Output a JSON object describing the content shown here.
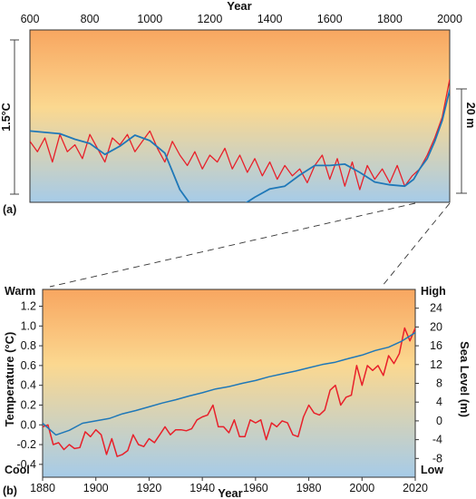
{
  "colors": {
    "temperature": "#e8202a",
    "sea_level": "#1f78b8",
    "warm_top": "#f8a660",
    "mid": "#fbd890",
    "cool_bottom": "#a6cbe8"
  },
  "chart_data": [
    {
      "type": "line",
      "panel_label": "(a)",
      "xlabel": "Year",
      "x_ticks": [
        "600",
        "800",
        "1000",
        "1200",
        "1400",
        "1600",
        "1800",
        "2000"
      ],
      "xlim": [
        600,
        2000
      ],
      "left_scale_label": "1.5°C",
      "right_scale_label": "20 m",
      "series": [
        {
          "color_role": "temperature",
          "x": [
            600,
            625,
            650,
            675,
            700,
            725,
            750,
            775,
            800,
            825,
            850,
            875,
            900,
            925,
            950,
            975,
            1000,
            1025,
            1050,
            1075,
            1100,
            1125,
            1150,
            1175,
            1200,
            1225,
            1250,
            1275,
            1300,
            1325,
            1350,
            1375,
            1400,
            1425,
            1450,
            1475,
            1500,
            1525,
            1550,
            1575,
            1600,
            1625,
            1650,
            1675,
            1700,
            1725,
            1750,
            1775,
            1800,
            1825,
            1850,
            1875,
            1900,
            1925,
            1950,
            1975,
            2000
          ],
          "y": [
            0.45,
            0.3,
            0.5,
            0.15,
            0.55,
            0.3,
            0.4,
            0.2,
            0.55,
            0.35,
            0.15,
            0.5,
            0.4,
            0.55,
            0.3,
            0.45,
            0.6,
            0.35,
            0.15,
            0.45,
            0.25,
            0.1,
            0.3,
            0.05,
            0.25,
            0.15,
            0.35,
            0.05,
            0.25,
            0.0,
            0.2,
            -0.05,
            0.15,
            -0.1,
            0.1,
            -0.05,
            0.05,
            -0.15,
            0.1,
            0.25,
            -0.1,
            0.2,
            -0.2,
            0.15,
            -0.25,
            0.1,
            -0.1,
            0.05,
            -0.15,
            0.1,
            -0.2,
            -0.05,
            0.05,
            0.25,
            0.5,
            0.8,
            1.35
          ]
        },
        {
          "color_role": "sea_level",
          "x": [
            600,
            650,
            700,
            750,
            800,
            850,
            900,
            950,
            1000,
            1050,
            1100,
            1150,
            1200,
            1250,
            1300,
            1350,
            1400,
            1450,
            1500,
            1550,
            1600,
            1650,
            1700,
            1750,
            1800,
            1850,
            1880,
            1900,
            1925,
            1950,
            1975,
            2000
          ],
          "y": [
            0.6,
            0.58,
            0.56,
            0.48,
            0.42,
            0.26,
            0.38,
            0.54,
            0.46,
            0.28,
            -0.25,
            -0.55,
            -0.5,
            -0.55,
            -0.5,
            -0.36,
            -0.24,
            -0.2,
            -0.04,
            0.1,
            0.1,
            0.12,
            0.0,
            -0.14,
            -0.18,
            -0.2,
            -0.1,
            0.05,
            0.2,
            0.45,
            0.75,
            1.2
          ]
        }
      ]
    },
    {
      "type": "line",
      "panel_label": "(b)",
      "xlabel": "Year",
      "ylabel": "Temperature (°C)",
      "y2label": "Sea Level (m)",
      "xlim": [
        1880,
        2020
      ],
      "ylim": [
        -0.53,
        1.37
      ],
      "y2lim": [
        -12,
        28
      ],
      "x_ticks": [
        "1880",
        "1900",
        "1920",
        "1940",
        "1960",
        "1980",
        "2000",
        "2020"
      ],
      "y_ticks": [
        "1.2",
        "1.0",
        "0.8",
        "0.6",
        "0.4",
        "0.2",
        "0.0",
        "-0.2",
        "-0.4"
      ],
      "y2_ticks": [
        "24",
        "20",
        "16",
        "12",
        "8",
        "4",
        "0",
        "-4",
        "-8"
      ],
      "top_left_label": "Warm",
      "bottom_left_label": "Cool",
      "top_right_label": "High",
      "bottom_right_label": "Low",
      "series": [
        {
          "color_role": "temperature",
          "axis": "left",
          "x": [
            1880,
            1882,
            1884,
            1886,
            1888,
            1890,
            1892,
            1894,
            1896,
            1898,
            1900,
            1902,
            1904,
            1906,
            1908,
            1910,
            1912,
            1914,
            1916,
            1918,
            1920,
            1922,
            1924,
            1926,
            1928,
            1930,
            1932,
            1934,
            1936,
            1938,
            1940,
            1942,
            1944,
            1946,
            1948,
            1950,
            1952,
            1954,
            1956,
            1958,
            1960,
            1962,
            1964,
            1966,
            1968,
            1970,
            1972,
            1974,
            1976,
            1978,
            1980,
            1982,
            1984,
            1986,
            1988,
            1990,
            1992,
            1994,
            1996,
            1998,
            2000,
            2002,
            2004,
            2006,
            2008,
            2010,
            2012,
            2014,
            2016,
            2018,
            2020
          ],
          "y": [
            -0.02,
            0.0,
            -0.2,
            -0.18,
            -0.25,
            -0.2,
            -0.24,
            -0.23,
            -0.07,
            -0.12,
            -0.05,
            -0.1,
            -0.3,
            -0.14,
            -0.32,
            -0.3,
            -0.26,
            -0.1,
            -0.2,
            -0.22,
            -0.14,
            -0.18,
            -0.1,
            -0.02,
            -0.1,
            -0.05,
            -0.05,
            -0.06,
            -0.04,
            0.05,
            0.08,
            0.1,
            0.2,
            -0.02,
            -0.02,
            -0.08,
            0.05,
            -0.12,
            -0.12,
            0.05,
            0.02,
            0.05,
            -0.15,
            0.02,
            -0.02,
            0.04,
            0.02,
            -0.1,
            -0.12,
            0.08,
            0.2,
            0.12,
            0.1,
            0.15,
            0.35,
            0.4,
            0.2,
            0.28,
            0.3,
            0.6,
            0.4,
            0.6,
            0.55,
            0.6,
            0.5,
            0.7,
            0.62,
            0.72,
            0.98,
            0.85,
            0.98
          ]
        },
        {
          "color_role": "sea_level",
          "axis": "right",
          "x": [
            1880,
            1885,
            1890,
            1895,
            1900,
            1905,
            1910,
            1915,
            1920,
            1925,
            1930,
            1935,
            1940,
            1945,
            1950,
            1955,
            1960,
            1965,
            1970,
            1975,
            1980,
            1985,
            1990,
            1995,
            2000,
            2005,
            2010,
            2015,
            2020
          ],
          "y": [
            -0.5,
            -3.0,
            -2.0,
            -0.5,
            0.0,
            0.5,
            1.5,
            2.2,
            3.0,
            3.8,
            4.5,
            5.3,
            6.0,
            6.8,
            7.3,
            8.0,
            8.6,
            9.4,
            10.0,
            10.6,
            11.3,
            12.0,
            12.5,
            13.3,
            14.0,
            15.0,
            15.7,
            17.0,
            18.8
          ]
        }
      ]
    }
  ]
}
